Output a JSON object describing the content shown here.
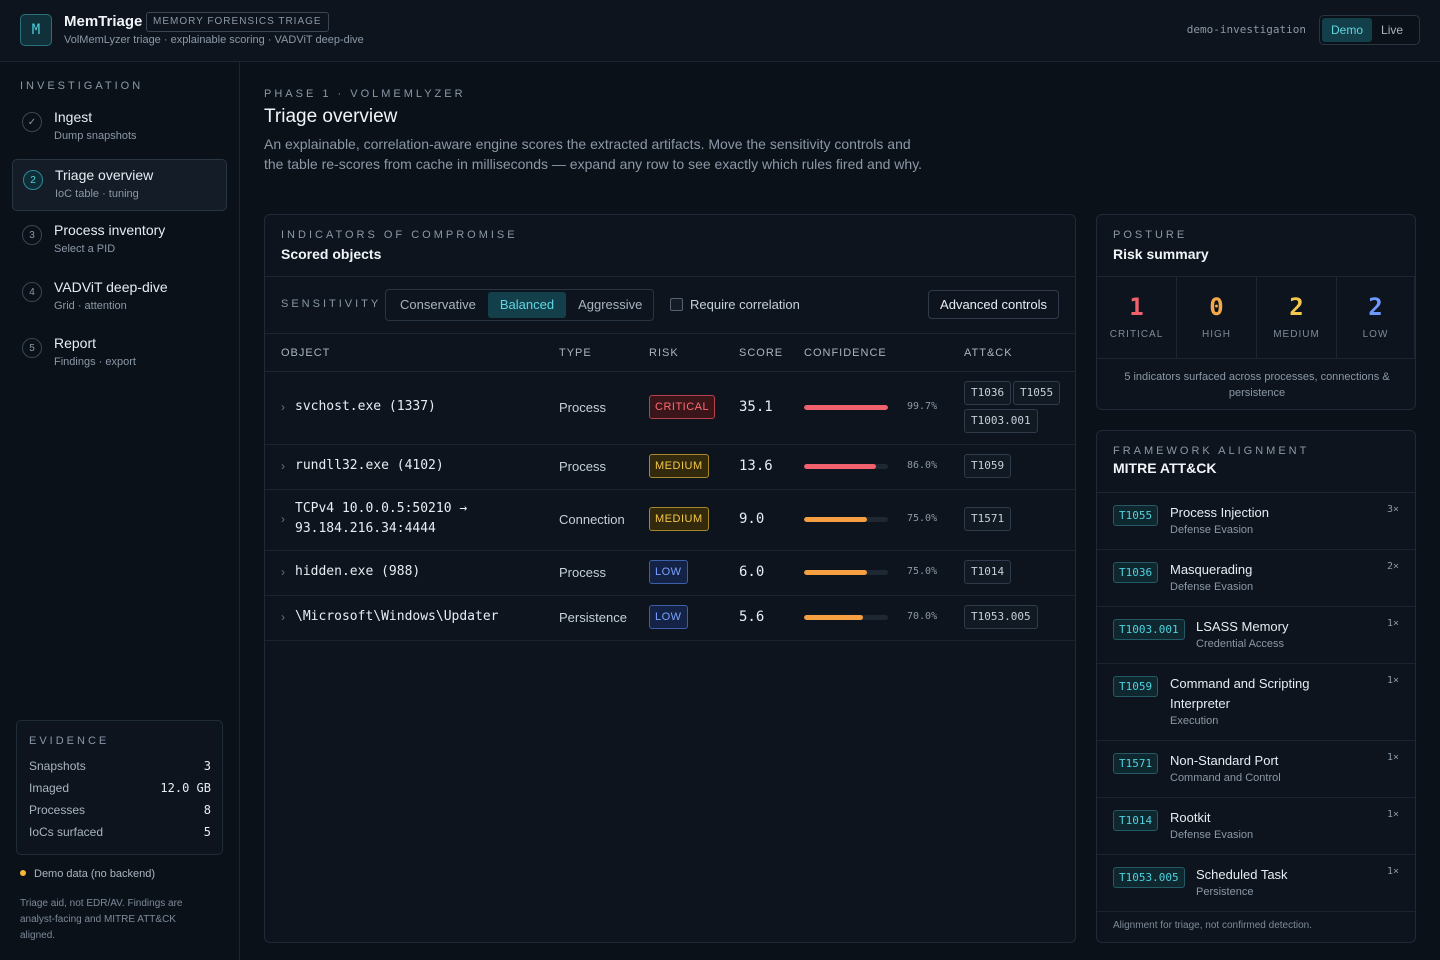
{
  "header": {
    "logo_letter": "M",
    "app_name": "MemTriage",
    "badge": "MEMORY FORENSICS TRIAGE",
    "subtitle": "VolMemLyzer triage · explainable scoring · VADViT deep-dive",
    "investigation": "demo-investigation",
    "modes": [
      "Demo",
      "Live"
    ],
    "active_mode": "Demo"
  },
  "sidebar": {
    "heading": "INVESTIGATION",
    "steps": [
      {
        "num": "✓",
        "title": "Ingest",
        "sub": "Dump snapshots",
        "state": "done"
      },
      {
        "num": "2",
        "title": "Triage overview",
        "sub": "IoC table · tuning",
        "state": "active"
      },
      {
        "num": "3",
        "title": "Process inventory",
        "sub": "Select a PID",
        "state": "pending"
      },
      {
        "num": "4",
        "title": "VADViT deep-dive",
        "sub": "Grid · attention",
        "state": "pending"
      },
      {
        "num": "5",
        "title": "Report",
        "sub": "Findings · export",
        "state": "pending"
      }
    ],
    "evidence": {
      "heading": "EVIDENCE",
      "rows": [
        {
          "label": "Snapshots",
          "value": "3"
        },
        {
          "label": "Imaged",
          "value": "12.0 GB"
        },
        {
          "label": "Processes",
          "value": "8"
        },
        {
          "label": "IoCs surfaced",
          "value": "5"
        }
      ]
    },
    "demo_note": "Demo data (no backend)",
    "disclaimer": "Triage aid, not EDR/AV. Findings are analyst-facing and MITRE ATT&CK aligned."
  },
  "main": {
    "phase": "PHASE 1 · VOLMEMLYZER",
    "title": "Triage overview",
    "description": "An explainable, correlation-aware engine scores the extracted artifacts. Move the sensitivity controls and the table re-scores from cache in milliseconds — expand any row to see exactly which rules fired and why."
  },
  "ioc": {
    "kicker": "INDICATORS OF COMPROMISE",
    "title": "Scored objects",
    "sensitivity_label": "SENSITIVITY",
    "sensitivity_options": [
      "Conservative",
      "Balanced",
      "Aggressive"
    ],
    "sensitivity_selected": "Balanced",
    "require_correlation_label": "Require correlation",
    "require_correlation_checked": false,
    "advanced_label": "Advanced controls",
    "columns": [
      "OBJECT",
      "TYPE",
      "RISK",
      "SCORE",
      "CONFIDENCE",
      "ATT&CK"
    ],
    "rows": [
      {
        "object": "svchost.exe (1337)",
        "type": "Process",
        "risk": "CRITICAL",
        "score": "35.1",
        "confidence": 99.7,
        "confidence_label": "99.7%",
        "tags": [
          "T1036",
          "T1055",
          "T1003.001"
        ]
      },
      {
        "object": "rundll32.exe (4102)",
        "type": "Process",
        "risk": "MEDIUM",
        "score": "13.6",
        "confidence": 86.0,
        "confidence_label": "86.0%",
        "tags": [
          "T1059"
        ]
      },
      {
        "object": "TCPv4 10.0.0.5:50210 → 93.184.216.34:4444",
        "type": "Connection",
        "risk": "MEDIUM",
        "score": "9.0",
        "confidence": 75.0,
        "confidence_label": "75.0%",
        "tags": [
          "T1571"
        ]
      },
      {
        "object": "hidden.exe (988)",
        "type": "Process",
        "risk": "LOW",
        "score": "6.0",
        "confidence": 75.0,
        "confidence_label": "75.0%",
        "tags": [
          "T1014"
        ]
      },
      {
        "object": "\\Microsoft\\Windows\\Updater",
        "type": "Persistence",
        "risk": "LOW",
        "score": "5.6",
        "confidence": 70.0,
        "confidence_label": "70.0%",
        "tags": [
          "T1053.005"
        ]
      }
    ]
  },
  "posture": {
    "kicker": "POSTURE",
    "title": "Risk summary",
    "stats": [
      {
        "count": "1",
        "label": "CRITICAL",
        "color": "#f0616d"
      },
      {
        "count": "0",
        "label": "HIGH",
        "color": "#f5a94b"
      },
      {
        "count": "2",
        "label": "MEDIUM",
        "color": "#f5c84b"
      },
      {
        "count": "2",
        "label": "LOW",
        "color": "#6d98ff"
      }
    ],
    "note": "5 indicators surfaced across processes, connections & persistence"
  },
  "mitre": {
    "kicker": "FRAMEWORK ALIGNMENT",
    "title": "MITRE ATT&CK",
    "techniques": [
      {
        "id": "T1055",
        "name": "Process Injection",
        "tactic": "Defense Evasion",
        "count": "3×"
      },
      {
        "id": "T1036",
        "name": "Masquerading",
        "tactic": "Defense Evasion",
        "count": "2×"
      },
      {
        "id": "T1003.001",
        "name": "LSASS Memory",
        "tactic": "Credential Access",
        "count": "1×"
      },
      {
        "id": "T1059",
        "name": "Command and Scripting Interpreter",
        "tactic": "Execution",
        "count": "1×"
      },
      {
        "id": "T1571",
        "name": "Non-Standard Port",
        "tactic": "Command and Control",
        "count": "1×"
      },
      {
        "id": "T1014",
        "name": "Rootkit",
        "tactic": "Defense Evasion",
        "count": "1×"
      },
      {
        "id": "T1053.005",
        "name": "Scheduled Task",
        "tactic": "Persistence",
        "count": "1×"
      }
    ],
    "footer": "Alignment for triage, not confirmed detection."
  },
  "colors": {
    "accent": "#4fd1dd",
    "critical": "#f0616d",
    "medium": "#f5c84b",
    "low": "#6d98ff",
    "bar_high": "#f0616d",
    "bar_mid": "#f59e42"
  }
}
